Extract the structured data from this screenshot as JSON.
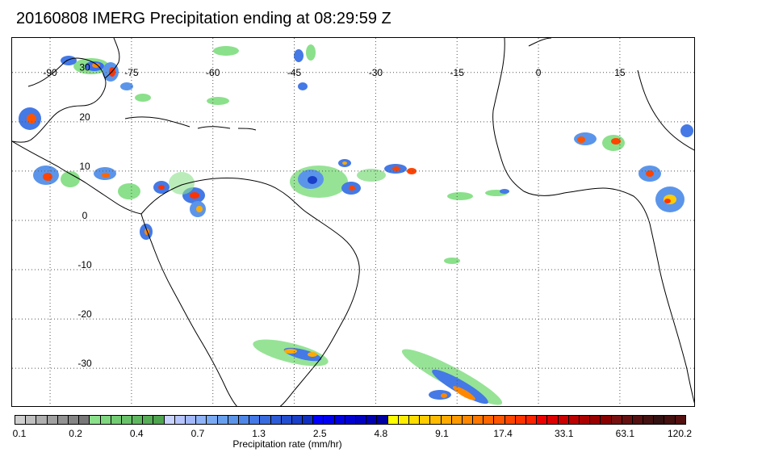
{
  "title": "20160808 IMERG Precipitation ending at 08:29:59 Z",
  "map": {
    "lon_range": [
      -97,
      29
    ],
    "lat_range": [
      -38,
      37
    ],
    "longitude_labels": [
      "-90",
      "-75",
      "-60",
      "-45",
      "-30",
      "-15",
      "0",
      "15"
    ],
    "longitude_values": [
      -90,
      -75,
      -60,
      -45,
      -30,
      -15,
      0,
      15
    ],
    "latitude_labels": [
      "30",
      "20",
      "10",
      "0",
      "-10",
      "-20",
      "-30"
    ],
    "latitude_values": [
      30,
      20,
      10,
      0,
      -10,
      -20,
      -30
    ],
    "gridlines": "dotted",
    "coastline_color": "#000000"
  },
  "colorbar": {
    "title": "Precipitation rate (mm/hr)",
    "tick_labels": [
      "0.1",
      "0.2",
      "0.4",
      "0.7",
      "1.3",
      "2.5",
      "4.8",
      "9.1",
      "17.4",
      "33.1",
      "63.1",
      "120.2"
    ],
    "colors": [
      "#cfcfcf",
      "#bfbfbf",
      "#afafaf",
      "#a0a0a0",
      "#929292",
      "#858585",
      "#787878",
      "#8be08b",
      "#7ed67e",
      "#73cc73",
      "#69c269",
      "#5fb85f",
      "#57ae57",
      "#4fa44f",
      "#c9d3ff",
      "#b6c5ff",
      "#a3b8fb",
      "#8fb3f7",
      "#7aaaf2",
      "#69a0ee",
      "#5b95ea",
      "#4f87e8",
      "#4479e6",
      "#386bde",
      "#2d5cd6",
      "#234ece",
      "#1a3fc8",
      "#1130c2",
      "#0000ff",
      "#0000f0",
      "#0000e0",
      "#0000d0",
      "#0000c0",
      "#0000b0",
      "#0000a0",
      "#ffff00",
      "#ffee00",
      "#ffdd00",
      "#ffcc00",
      "#ffbb00",
      "#ffaa00",
      "#ff9900",
      "#ff8800",
      "#ff7700",
      "#ff6600",
      "#ff5500",
      "#ff4400",
      "#ff3300",
      "#ff2200",
      "#ee0000",
      "#dd0000",
      "#cc0000",
      "#bb0000",
      "#aa0000",
      "#990000",
      "#880000",
      "#771111",
      "#661111",
      "#551111",
      "#441111",
      "#331111",
      "#441010",
      "#551010"
    ]
  }
}
